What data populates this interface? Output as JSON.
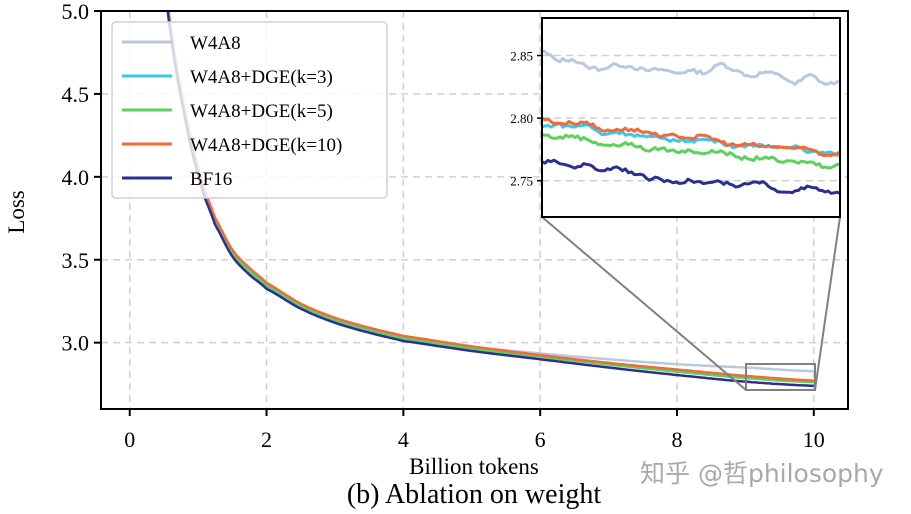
{
  "chart_data": {
    "type": "line",
    "caption": "(b) Ablation on weight",
    "xlabel": "Billion tokens",
    "ylabel": "Loss",
    "xlim": [
      -0.42,
      10.5
    ],
    "ylim": [
      2.6,
      5.0
    ],
    "xticks": [
      0,
      2,
      4,
      6,
      8,
      10
    ],
    "yticks": [
      3.0,
      3.5,
      4.0,
      4.5,
      5.0
    ],
    "ytick_labels": [
      "3.0",
      "3.5",
      "4.0",
      "4.5",
      "5.0"
    ],
    "grid": true,
    "legend_position": "upper-left",
    "x": [
      0.4,
      0.5,
      0.6,
      0.7,
      0.8,
      0.9,
      1.0,
      1.1,
      1.25,
      1.5,
      1.75,
      2,
      2.5,
      3,
      3.5,
      4,
      5,
      6,
      7,
      8,
      9,
      10
    ],
    "series": [
      {
        "name": "W4A8",
        "color": "#b8c9de",
        "values": [
          5.6,
          5.2,
          4.86,
          4.6,
          4.38,
          4.18,
          4.02,
          3.88,
          3.72,
          3.53,
          3.42,
          3.34,
          3.22,
          3.135,
          3.075,
          3.03,
          2.975,
          2.935,
          2.9,
          2.87,
          2.85,
          2.828
        ]
      },
      {
        "name": "W4A8+DGE(k=3)",
        "color": "#3ec4ee",
        "values": [
          5.6,
          5.21,
          4.87,
          4.61,
          4.39,
          4.19,
          4.03,
          3.89,
          3.73,
          3.54,
          3.43,
          3.345,
          3.225,
          3.14,
          3.08,
          3.03,
          2.97,
          2.92,
          2.875,
          2.835,
          2.795,
          2.77
        ]
      },
      {
        "name": "W4A8+DGE(k=5)",
        "color": "#5dd05d",
        "values": [
          5.6,
          5.21,
          4.87,
          4.61,
          4.39,
          4.19,
          4.03,
          3.89,
          3.73,
          3.54,
          3.43,
          3.34,
          3.22,
          3.135,
          3.075,
          3.025,
          2.965,
          2.915,
          2.868,
          2.825,
          2.787,
          2.762
        ]
      },
      {
        "name": "W4A8+DGE(k=10)",
        "color": "#ee6b3b",
        "values": [
          5.62,
          5.23,
          4.89,
          4.63,
          4.41,
          4.21,
          4.05,
          3.91,
          3.75,
          3.56,
          3.45,
          3.36,
          3.235,
          3.15,
          3.09,
          3.04,
          2.978,
          2.925,
          2.878,
          2.838,
          2.8,
          2.772
        ]
      },
      {
        "name": "BF16",
        "color": "#2b3090",
        "values": [
          5.58,
          5.19,
          4.85,
          4.59,
          4.37,
          4.17,
          4.01,
          3.87,
          3.71,
          3.52,
          3.41,
          3.325,
          3.205,
          3.12,
          3.06,
          3.01,
          2.95,
          2.9,
          2.85,
          2.805,
          2.765,
          2.74
        ]
      }
    ],
    "inset": {
      "xlim": [
        9.0,
        10.0
      ],
      "ylim": [
        2.721,
        2.88
      ],
      "yticks": [
        2.75,
        2.8,
        2.85
      ],
      "ytick_labels": [
        "2.75",
        "2.80",
        "2.85"
      ],
      "x": [
        9.0,
        9.05,
        9.1,
        9.15,
        9.2,
        9.25,
        9.3,
        9.35,
        9.4,
        9.45,
        9.5,
        9.55,
        9.6,
        9.65,
        9.7,
        9.75,
        9.8,
        9.85,
        9.9,
        9.95,
        10.0
      ],
      "series": [
        {
          "name": "W4A8",
          "values": [
            2.854,
            2.846,
            2.847,
            2.841,
            2.839,
            2.843,
            2.841,
            2.838,
            2.839,
            2.836,
            2.838,
            2.836,
            2.844,
            2.838,
            2.833,
            2.837,
            2.834,
            2.827,
            2.835,
            2.827,
            2.829
          ]
        },
        {
          "name": "W4A8+DGE(k=3)",
          "values": [
            2.793,
            2.795,
            2.793,
            2.795,
            2.787,
            2.789,
            2.787,
            2.785,
            2.784,
            2.782,
            2.782,
            2.783,
            2.781,
            2.777,
            2.779,
            2.777,
            2.777,
            2.778,
            2.773,
            2.772,
            2.771
          ]
        },
        {
          "name": "W4A8+DGE(k=5)",
          "values": [
            2.787,
            2.784,
            2.786,
            2.783,
            2.779,
            2.778,
            2.78,
            2.774,
            2.776,
            2.773,
            2.774,
            2.772,
            2.774,
            2.769,
            2.767,
            2.769,
            2.765,
            2.765,
            2.765,
            2.761,
            2.763
          ]
        },
        {
          "name": "W4A8+DGE(k=10)",
          "values": [
            2.8,
            2.796,
            2.796,
            2.797,
            2.79,
            2.791,
            2.791,
            2.789,
            2.785,
            2.786,
            2.784,
            2.786,
            2.781,
            2.778,
            2.779,
            2.777,
            2.777,
            2.776,
            2.775,
            2.77,
            2.773
          ]
        },
        {
          "name": "BF16",
          "values": [
            2.765,
            2.765,
            2.761,
            2.763,
            2.758,
            2.761,
            2.757,
            2.752,
            2.751,
            2.749,
            2.75,
            2.748,
            2.749,
            2.745,
            2.748,
            2.748,
            2.741,
            2.742,
            2.745,
            2.741,
            2.74
          ]
        }
      ]
    }
  },
  "watermark": "知乎 @哲philosophy"
}
